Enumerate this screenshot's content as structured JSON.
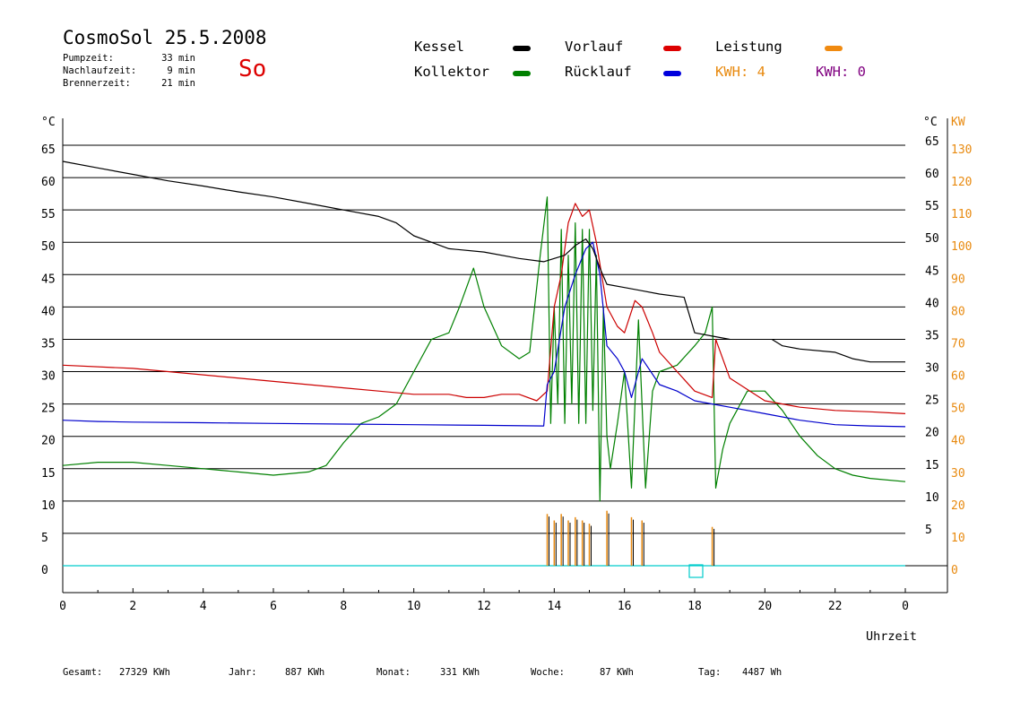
{
  "header": {
    "title": "CosmoSol 25.5.2008",
    "day": "So",
    "stats": [
      {
        "label": "Pumpzeit:",
        "value": "33 min"
      },
      {
        "label": "Nachlaufzeit:",
        "value": "9 min"
      },
      {
        "label": "Brennerzeit:",
        "value": "21 min"
      }
    ]
  },
  "legend": {
    "kessel": "Kessel",
    "kollektor": "Kollektor",
    "vorlauf": "Vorlauf",
    "ruecklauf": "Rücklauf",
    "leistung": "Leistung",
    "kwh1": "KWH: 4",
    "kwh2": "KWH: 0"
  },
  "footer": [
    {
      "label": "Gesamt:",
      "value": "27329 KWh"
    },
    {
      "label": "Jahr:",
      "value": "887 KWh"
    },
    {
      "label": "Monat:",
      "value": "331 KWh"
    },
    {
      "label": "Woche:",
      "value": "87 KWh"
    },
    {
      "label": "Tag:",
      "value": "4487 Wh"
    }
  ],
  "colors": {
    "kessel": "#000000",
    "kollektor": "#008000",
    "vorlauf": "#cc0000",
    "ruecklauf": "#0000cc",
    "leistung": "#e88a10",
    "kwh2": "#800080",
    "baseline": "#00cccc",
    "day": "#dd0000"
  },
  "chart_data": {
    "type": "line",
    "xlabel": "Uhrzeit",
    "ylabel_left": "°C",
    "ylabel_right": "°C",
    "ylabel_right2": "KW",
    "xlim": [
      0,
      24
    ],
    "ylim": [
      0,
      65
    ],
    "y2lim": [
      0,
      130
    ],
    "x_tick_labels": [
      "0",
      "2",
      "4",
      "6",
      "8",
      "10",
      "12",
      "14",
      "16",
      "18",
      "20",
      "22",
      "0"
    ],
    "y_ticks": [
      0,
      5,
      10,
      15,
      20,
      25,
      30,
      35,
      40,
      45,
      50,
      55,
      60,
      65
    ],
    "y2_ticks": [
      0,
      10,
      20,
      30,
      40,
      50,
      60,
      70,
      80,
      90,
      100,
      110,
      120,
      130
    ],
    "grid": true,
    "series": [
      {
        "name": "Kessel",
        "key": "kessel",
        "x": [
          0,
          1,
          2,
          3,
          4,
          5,
          6,
          7,
          8,
          9,
          9.5,
          10,
          10.5,
          11,
          12,
          13,
          13.7,
          14,
          14.3,
          14.6,
          14.9,
          15.1,
          15.3,
          15.5,
          16,
          16.5,
          17,
          17.7,
          18,
          18.5,
          19,
          19.2,
          20.2,
          20.5,
          21,
          22,
          22.5,
          23,
          24
        ],
        "y": [
          62.5,
          61.5,
          60.5,
          59.5,
          58.7,
          57.8,
          57,
          56,
          55,
          54,
          53,
          51,
          50,
          49,
          48.5,
          47.5,
          47,
          47.5,
          48,
          49.5,
          50.5,
          49,
          46,
          43.5,
          43,
          42.5,
          42,
          41.5,
          36,
          35.5,
          35,
          null,
          35,
          34,
          33.5,
          33,
          32,
          31.5,
          31.5
        ]
      },
      {
        "name": "Vorlauf",
        "key": "vorlauf",
        "x": [
          0,
          2,
          4,
          6,
          8,
          9,
          10,
          11,
          11.5,
          12,
          12.5,
          13,
          13.5,
          13.8,
          14,
          14.2,
          14.4,
          14.6,
          14.8,
          15,
          15.2,
          15.5,
          15.8,
          16,
          16.3,
          16.5,
          16.8,
          17,
          17.5,
          18,
          18.5,
          18.6,
          19,
          20,
          21,
          22,
          23,
          24
        ],
        "y": [
          31,
          30.5,
          29.5,
          28.5,
          27.5,
          27,
          26.5,
          26.5,
          26,
          26,
          26.5,
          26.5,
          25.5,
          27,
          40,
          45,
          53,
          56,
          54,
          55,
          50,
          40,
          37,
          36,
          41,
          40,
          36,
          33,
          30,
          27,
          26,
          35,
          29,
          25.5,
          24.5,
          24,
          23.8,
          23.5
        ]
      },
      {
        "name": "Rücklauf",
        "key": "ruecklauf",
        "x": [
          0,
          1,
          2,
          4,
          6,
          8,
          10,
          12,
          13.7,
          13.8,
          14,
          14.3,
          14.6,
          14.9,
          15.1,
          15.3,
          15.5,
          15.8,
          16,
          16.2,
          16.5,
          17,
          17.5,
          18,
          18.5,
          19,
          20,
          21,
          22,
          23,
          24
        ],
        "y": [
          22.5,
          22.3,
          22.2,
          22.1,
          22,
          21.9,
          21.8,
          21.7,
          21.6,
          28,
          30,
          40,
          45,
          49,
          50,
          45,
          34,
          32,
          30,
          26,
          32,
          28,
          27,
          25.5,
          25,
          24.5,
          23.5,
          22.5,
          21.8,
          21.6,
          21.5
        ]
      },
      {
        "name": "Kollektor",
        "key": "kollektor",
        "x": [
          0,
          1,
          2,
          3,
          4,
          5,
          6,
          7,
          7.5,
          8,
          8.5,
          9,
          9.5,
          10,
          10.5,
          11,
          11.3,
          11.7,
          12,
          12.5,
          13,
          13.3,
          13.6,
          13.8,
          13.9,
          14.0,
          14.1,
          14.2,
          14.3,
          14.4,
          14.5,
          14.6,
          14.7,
          14.8,
          14.9,
          15.0,
          15.1,
          15.2,
          15.3,
          15.4,
          15.5,
          15.6,
          15.8,
          16.0,
          16.2,
          16.4,
          16.6,
          16.8,
          17,
          17.5,
          18,
          18.3,
          18.5,
          18.6,
          18.8,
          19,
          19.5,
          20,
          20.5,
          21,
          21.5,
          22,
          22.5,
          23,
          24
        ],
        "y": [
          15.5,
          16,
          16,
          15.5,
          15,
          14.5,
          14,
          14.5,
          15.5,
          19,
          22,
          23,
          25,
          30,
          35,
          36,
          40,
          46,
          40,
          34,
          32,
          33,
          48,
          57,
          22,
          40,
          25,
          52,
          22,
          48,
          25,
          53,
          22,
          52,
          22,
          52,
          24,
          48,
          10,
          40,
          20,
          15,
          22,
          30,
          12,
          38,
          12,
          27,
          30,
          31,
          34,
          36,
          40,
          12,
          18,
          22,
          27,
          27,
          24,
          20,
          17,
          15,
          14,
          13.5,
          13
        ]
      }
    ],
    "power_bars": [
      {
        "x": 13.8,
        "v": 16
      },
      {
        "x": 14.0,
        "v": 14
      },
      {
        "x": 14.2,
        "v": 16
      },
      {
        "x": 14.4,
        "v": 14
      },
      {
        "x": 14.6,
        "v": 15
      },
      {
        "x": 14.8,
        "v": 14
      },
      {
        "x": 15.0,
        "v": 13
      },
      {
        "x": 15.5,
        "v": 17
      },
      {
        "x": 16.2,
        "v": 15
      },
      {
        "x": 16.5,
        "v": 14
      },
      {
        "x": 18.5,
        "v": 12
      }
    ]
  }
}
